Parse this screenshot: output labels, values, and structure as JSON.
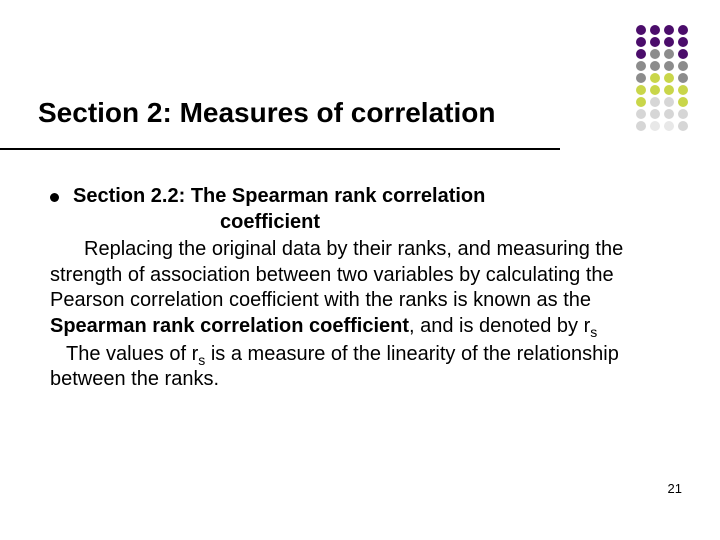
{
  "title": "Section 2: Measures of correlation",
  "bullet_heading": "Section 2.2: The Spearman rank correlation",
  "bullet_heading_line2": "coefficient",
  "para1_a": "Replacing the original data by their ranks, and measuring the strength of association between two variables by calculating the Pearson correlation coefficient with the ranks is known as the ",
  "para1_bold": "Spearman rank correlation coefficient",
  "para1_b": ", and is denoted by r",
  "para1_sub": "s",
  "para2_a": "The values of r",
  "para2_sub": "s",
  "para2_b": " is a measure of the linearity of the relationship between the ranks.",
  "page_number": "21",
  "deco": {
    "rows": [
      [
        "#4b0d6b",
        "#4b0d6b",
        "#4b0d6b",
        "#4b0d6b"
      ],
      [
        "#4b0d6b",
        "#4b0d6b",
        "#4b0d6b",
        "#4b0d6b"
      ],
      [
        "#4b0d6b",
        "#8c8c8c",
        "#8c8c8c",
        "#4b0d6b"
      ],
      [
        "#8c8c8c",
        "#8c8c8c",
        "#8c8c8c",
        "#8c8c8c"
      ],
      [
        "#8c8c8c",
        "#c9d64a",
        "#c9d64a",
        "#8c8c8c"
      ],
      [
        "#c9d64a",
        "#c9d64a",
        "#c9d64a",
        "#c9d64a"
      ],
      [
        "#c9d64a",
        "#d6d6d6",
        "#d6d6d6",
        "#c9d64a"
      ],
      [
        "#d6d6d6",
        "#d6d6d6",
        "#d6d6d6",
        "#d6d6d6"
      ],
      [
        "#d6d6d6",
        "#e8e8e8",
        "#e8e8e8",
        "#d6d6d6"
      ]
    ]
  }
}
